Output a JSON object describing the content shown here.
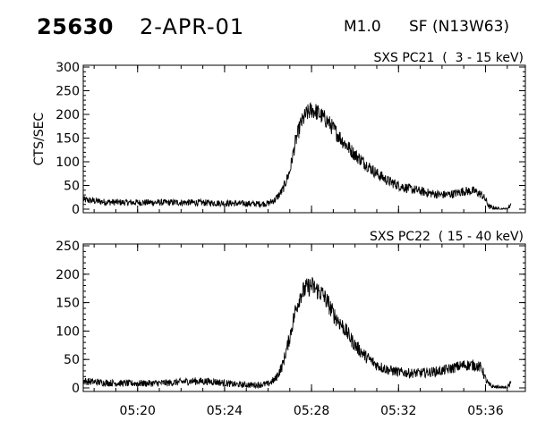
{
  "header": {
    "event_id": "25630",
    "date": "2-APR-01",
    "goes_class": "M1.0",
    "flare_location": "SF (N13W63)"
  },
  "chart_data": [
    {
      "type": "line",
      "title": "SXS PC21  (  3 - 15 keV)",
      "ylabel": "CTS/SEC",
      "xlabel": "",
      "xlim": [
        "05:17:30",
        "05:37:50"
      ],
      "ylim": [
        0,
        300
      ],
      "yticks": [
        0,
        50,
        100,
        150,
        200,
        250,
        300
      ],
      "xticks": [
        "05:20",
        "05:24",
        "05:28",
        "05:32",
        "05:36"
      ],
      "show_xtick_labels": false,
      "series": [
        {
          "x": [
            "05:17:30",
            "05:18:30",
            "05:19:30",
            "05:20:30",
            "05:21:30",
            "05:22:30",
            "05:23:30",
            "05:24:30",
            "05:25:30",
            "05:26:00",
            "05:26:20",
            "05:26:40",
            "05:27:00",
            "05:27:15",
            "05:27:30",
            "05:27:45",
            "05:28:00",
            "05:28:15",
            "05:28:30",
            "05:28:45",
            "05:29:00",
            "05:29:30",
            "05:30:00",
            "05:30:30",
            "05:31:00",
            "05:31:30",
            "05:32:00",
            "05:32:30",
            "05:33:00",
            "05:33:30",
            "05:34:00",
            "05:34:30",
            "05:35:00",
            "05:35:30",
            "05:35:50",
            "05:36:00",
            "05:36:10",
            "05:36:20",
            "05:36:40",
            "05:37:00",
            "05:37:10"
          ],
          "y": [
            20,
            15,
            14,
            14,
            14,
            14,
            13,
            12,
            11,
            12,
            20,
            40,
            80,
            140,
            180,
            200,
            210,
            205,
            195,
            185,
            170,
            140,
            115,
            95,
            75,
            60,
            50,
            43,
            38,
            33,
            30,
            32,
            38,
            38,
            30,
            20,
            5,
            3,
            0,
            0,
            10
          ]
        }
      ]
    },
    {
      "type": "line",
      "title": "SXS PC22  ( 15 - 40 keV)",
      "ylabel": "",
      "xlabel": "",
      "xlim": [
        "05:17:30",
        "05:37:50"
      ],
      "ylim": [
        0,
        250
      ],
      "yticks": [
        0,
        50,
        100,
        150,
        200,
        250
      ],
      "xticks": [
        "05:20",
        "05:24",
        "05:28",
        "05:32",
        "05:36"
      ],
      "show_xtick_labels": true,
      "series": [
        {
          "x": [
            "05:17:30",
            "05:18:30",
            "05:19:30",
            "05:20:30",
            "05:21:30",
            "05:22:30",
            "05:23:30",
            "05:24:30",
            "05:25:30",
            "05:26:00",
            "05:26:20",
            "05:26:40",
            "05:27:00",
            "05:27:15",
            "05:27:30",
            "05:27:45",
            "05:28:00",
            "05:28:15",
            "05:28:30",
            "05:28:45",
            "05:29:00",
            "05:29:30",
            "05:30:00",
            "05:30:30",
            "05:31:00",
            "05:31:30",
            "05:32:00",
            "05:32:30",
            "05:33:00",
            "05:33:30",
            "05:34:00",
            "05:34:30",
            "05:35:00",
            "05:35:30",
            "05:35:50",
            "05:36:00",
            "05:36:10",
            "05:36:20",
            "05:36:40",
            "05:37:00",
            "05:37:10"
          ],
          "y": [
            12,
            9,
            8,
            8,
            9,
            12,
            11,
            6,
            5,
            7,
            15,
            40,
            90,
            135,
            165,
            175,
            180,
            172,
            165,
            150,
            130,
            105,
            75,
            55,
            40,
            32,
            28,
            26,
            26,
            28,
            30,
            35,
            40,
            40,
            35,
            15,
            5,
            2,
            0,
            0,
            8
          ]
        }
      ]
    }
  ]
}
